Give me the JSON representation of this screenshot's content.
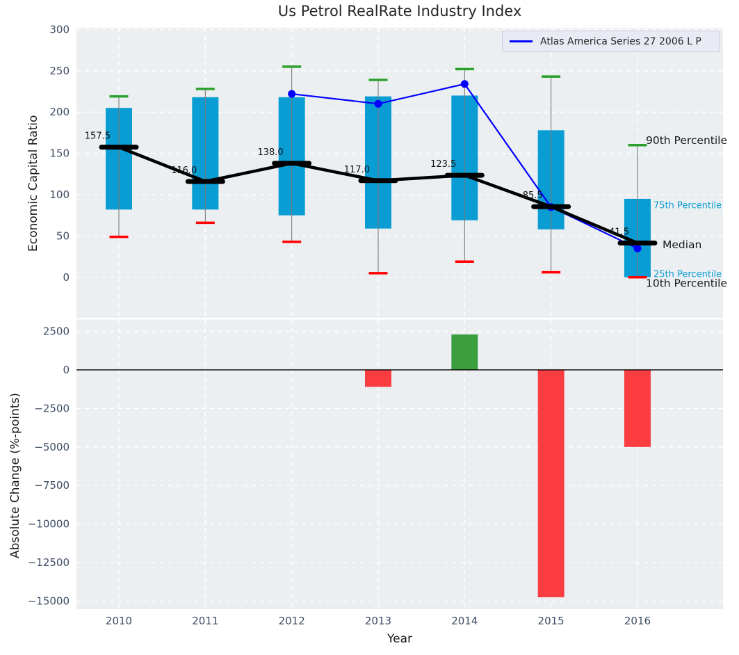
{
  "title": "Us Petrol RealRate Industry Index",
  "legend": {
    "label": "Atlas America Series 27 2006 L P"
  },
  "colors": {
    "box_fill": "#0a9dd4",
    "whisker": "#7a7a7a",
    "cap_high": "#2ca02c",
    "cap_low": "#ff0000",
    "median_line": "#000000",
    "series_line": "#0000ff",
    "bar_positive": "#3a9e3f",
    "bar_negative": "#fb3d42",
    "panel_bg": "#eceff1",
    "grid": "#ffffff",
    "tick_text": "#3d4c63",
    "text_dark": "#1a1a1a",
    "accent_label": "#0a9dd4"
  },
  "chart_data": [
    {
      "type": "box",
      "title": "Us Petrol RealRate Industry Index",
      "ylabel": "Economic Capital Ratio",
      "ylim": [
        -49,
        302
      ],
      "yticks": [
        {
          "v": 0,
          "label": "0"
        },
        {
          "v": 50,
          "label": "50"
        },
        {
          "v": 100,
          "label": "100"
        },
        {
          "v": 150,
          "label": "150"
        },
        {
          "v": 200,
          "label": "200"
        },
        {
          "v": 250,
          "label": "250"
        },
        {
          "v": 300,
          "label": "300"
        }
      ],
      "categories": [
        "2010",
        "2011",
        "2012",
        "2013",
        "2014",
        "2015",
        "2016"
      ],
      "boxes": [
        {
          "year": "2010",
          "p10": 49,
          "p25": 82,
          "median": 157.5,
          "p75": 205,
          "p90": 219,
          "label": "157.5"
        },
        {
          "year": "2011",
          "p10": 66,
          "p25": 82,
          "median": 116.0,
          "p75": 218,
          "p90": 228,
          "label": "116.0"
        },
        {
          "year": "2012",
          "p10": 43,
          "p25": 75,
          "median": 138.0,
          "p75": 218,
          "p90": 255,
          "label": "138.0"
        },
        {
          "year": "2013",
          "p10": 5,
          "p25": 59,
          "median": 117.0,
          "p75": 219,
          "p90": 239,
          "label": "117.0"
        },
        {
          "year": "2014",
          "p10": 19,
          "p25": 69,
          "median": 123.5,
          "p75": 220,
          "p90": 252,
          "label": "123.5"
        },
        {
          "year": "2015",
          "p10": 6,
          "p25": 58,
          "median": 85.5,
          "p75": 178,
          "p90": 243,
          "label": "85.5"
        },
        {
          "year": "2016",
          "p10": 0,
          "p25": 0,
          "median": 41.5,
          "p75": 95,
          "p90": 160,
          "label": "41.5"
        }
      ],
      "series": [
        {
          "name": "Atlas America Series 27 2006 L P",
          "points": [
            {
              "x": "2012",
              "y": 222
            },
            {
              "x": "2013",
              "y": 210
            },
            {
              "x": "2014",
              "y": 234
            },
            {
              "x": "2015",
              "y": 85
            },
            {
              "x": "2016",
              "y": 35
            }
          ]
        }
      ],
      "annotations": [
        {
          "text": "90th Percentile",
          "value": 166,
          "style": "dark"
        },
        {
          "text": "75th Percentile",
          "value": 88,
          "style": "accent"
        },
        {
          "text": "Median",
          "value": 40,
          "style": "dark"
        },
        {
          "text": "25th Percentile",
          "value": 5,
          "style": "accent"
        },
        {
          "text": "10th Percentile",
          "value": -7,
          "style": "dark"
        }
      ],
      "legend_position": "upper right",
      "grid": true
    },
    {
      "type": "bar",
      "xlabel": "Year",
      "ylabel": "Absolute Change (%-points)",
      "ylim": [
        -15520,
        3270
      ],
      "yticks": [
        {
          "v": 2500,
          "label": "2500"
        },
        {
          "v": 0,
          "label": "0"
        },
        {
          "v": -2500,
          "label": "−2500"
        },
        {
          "v": -5000,
          "label": "−5000"
        },
        {
          "v": -7500,
          "label": "−7500"
        },
        {
          "v": -10000,
          "label": "−10000"
        },
        {
          "v": -12500,
          "label": "−12500"
        },
        {
          "v": -15000,
          "label": "−15000"
        }
      ],
      "categories": [
        "2010",
        "2011",
        "2012",
        "2013",
        "2014",
        "2015",
        "2016"
      ],
      "values": [
        null,
        null,
        null,
        -1100,
        2300,
        -14750,
        -5000
      ],
      "grid": true
    }
  ]
}
